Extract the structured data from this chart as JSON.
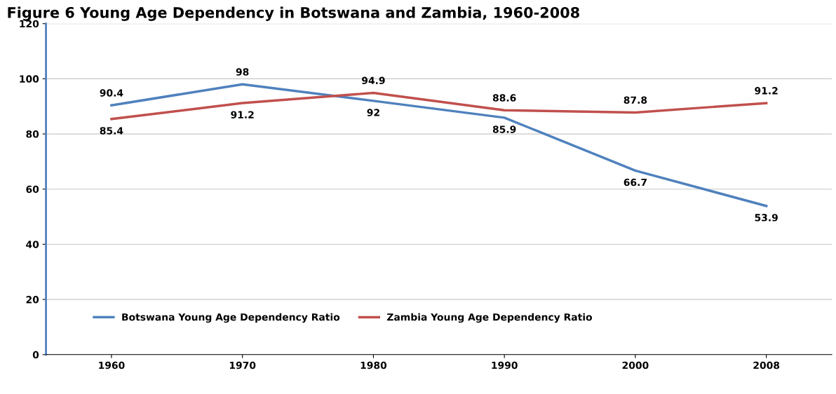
{
  "chart_data": {
    "type": "line",
    "title": "Figure 6 Young Age Dependency in Botswana and Zambia, 1960-2008",
    "categories": [
      "1960",
      "1970",
      "1980",
      "1990",
      "2000",
      "2008"
    ],
    "series": [
      {
        "name": "Botswana Young Age Dependency Ratio",
        "color": "#4f81bd",
        "values": [
          90.4,
          98,
          92,
          85.9,
          66.7,
          53.9
        ]
      },
      {
        "name": "Zambia Young Age Dependency Ratio",
        "color": "#c0504d",
        "values": [
          85.4,
          91.2,
          94.9,
          88.6,
          87.8,
          91.2
        ]
      }
    ],
    "ylim": [
      0,
      120
    ],
    "yticks": [
      0,
      20,
      40,
      60,
      80,
      100,
      120
    ],
    "grid": "y",
    "legend": "bottom left",
    "data_labels": true,
    "marker": "none",
    "line_style": "solid"
  }
}
